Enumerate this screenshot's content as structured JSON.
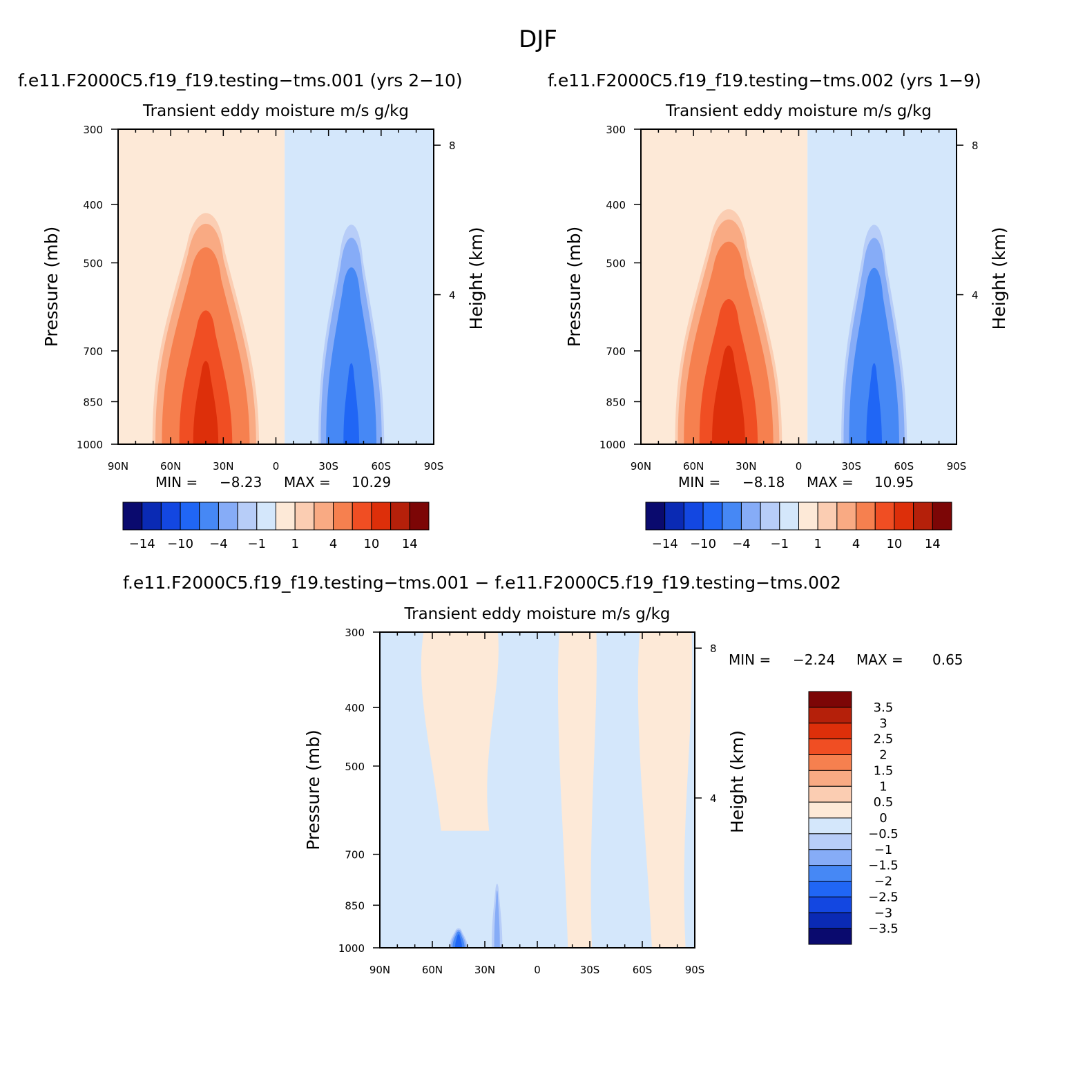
{
  "page": {
    "title": "DJF"
  },
  "palettes": {
    "main": [
      "#0a0a6e",
      "#0a2ab4",
      "#1347e1",
      "#2066f5",
      "#4688f5",
      "#86acf7",
      "#b7cdf8",
      "#d4e7fb",
      "#fde9d7",
      "#fbcdb2",
      "#f9aa83",
      "#f6804f",
      "#f04e23",
      "#dd2f0a",
      "#b5200a",
      "#7c0606"
    ],
    "diff": [
      "#0a0a6e",
      "#0a2ab4",
      "#1347e1",
      "#2066f5",
      "#4688f5",
      "#86acf7",
      "#b7cdf8",
      "#d4e7fb",
      "#fde9d7",
      "#fbcdb2",
      "#f9aa83",
      "#f6804f",
      "#f04e23",
      "#dd2f0a",
      "#b5200a",
      "#7c0606"
    ]
  },
  "chart_data": [
    {
      "type": "heatmap",
      "title": "f.e11.F2000C5.f19_f19.testing−tms.001 (yrs 2−10)",
      "subtitle": "Transient eddy moisture m/s g/kg",
      "xlabel": "",
      "ylabel": "Pressure (mb)",
      "ylabel_right": "Height (km)",
      "x_ticks": [
        "90N",
        "60N",
        "30N",
        "0",
        "30S",
        "60S",
        "90S"
      ],
      "y_ticks": [
        "300",
        "400",
        "500",
        "700",
        "850",
        "1000"
      ],
      "y_right_ticks": [
        "8",
        "4"
      ],
      "x_range": [
        90,
        -90
      ],
      "y_range": [
        1000,
        300
      ],
      "y_scale": "log",
      "stats": {
        "min_label": "MIN =",
        "min": "−8.23",
        "max_label": "MAX =",
        "max": "10.29"
      },
      "colorbar": {
        "orientation": "horizontal",
        "labels": [
          "−14",
          "−10",
          "−4",
          "−1",
          "1",
          "4",
          "10",
          "14"
        ]
      },
      "contour_levels": [
        -14,
        -12,
        -10,
        -8,
        -4,
        -2,
        -1,
        0,
        1,
        2,
        4,
        8,
        10,
        12,
        14
      ],
      "features": [
        {
          "kind": "region",
          "lat_range": [
            90,
            -5
          ],
          "p_range": [
            300,
            1000
          ],
          "value": 0.5
        },
        {
          "kind": "region",
          "lat_range": [
            -5,
            -90
          ],
          "p_range": [
            300,
            1000
          ],
          "value": -0.5
        },
        {
          "kind": "blob",
          "lat": 40,
          "p": 860,
          "lat_halfwidth": 32,
          "p_top": 380,
          "peak": 10.29
        },
        {
          "kind": "blob",
          "lat": -43,
          "p": 860,
          "lat_halfwidth": 20,
          "p_top": 395,
          "peak": -8.23
        }
      ]
    },
    {
      "type": "heatmap",
      "title": "f.e11.F2000C5.f19_f19.testing−tms.002 (yrs 1−9)",
      "subtitle": "Transient eddy moisture m/s g/kg",
      "xlabel": "",
      "ylabel": "Pressure (mb)",
      "ylabel_right": "Height (km)",
      "x_ticks": [
        "90N",
        "60N",
        "30N",
        "0",
        "30S",
        "60S",
        "90S"
      ],
      "y_ticks": [
        "300",
        "400",
        "500",
        "700",
        "850",
        "1000"
      ],
      "y_right_ticks": [
        "8",
        "4"
      ],
      "x_range": [
        90,
        -90
      ],
      "y_range": [
        1000,
        300
      ],
      "y_scale": "log",
      "stats": {
        "min_label": "MIN =",
        "min": "−8.18",
        "max_label": "MAX =",
        "max": "10.95"
      },
      "colorbar": {
        "orientation": "horizontal",
        "labels": [
          "−14",
          "−10",
          "−4",
          "−1",
          "1",
          "4",
          "10",
          "14"
        ]
      },
      "contour_levels": [
        -14,
        -12,
        -10,
        -8,
        -4,
        -2,
        -1,
        0,
        1,
        2,
        4,
        8,
        10,
        12,
        14
      ],
      "features": [
        {
          "kind": "region",
          "lat_range": [
            90,
            -5
          ],
          "p_range": [
            300,
            1000
          ],
          "value": 0.5
        },
        {
          "kind": "region",
          "lat_range": [
            -5,
            -90
          ],
          "p_range": [
            300,
            1000
          ],
          "value": -0.5
        },
        {
          "kind": "blob",
          "lat": 40,
          "p": 860,
          "lat_halfwidth": 32,
          "p_top": 375,
          "peak": 10.95
        },
        {
          "kind": "blob",
          "lat": -43,
          "p": 860,
          "lat_halfwidth": 20,
          "p_top": 395,
          "peak": -8.18
        }
      ]
    },
    {
      "type": "heatmap",
      "title": "f.e11.F2000C5.f19_f19.testing−tms.001 − f.e11.F2000C5.f19_f19.testing−tms.002",
      "subtitle": "Transient eddy moisture m/s g/kg",
      "xlabel": "",
      "ylabel": "Pressure (mb)",
      "ylabel_right": "Height (km)",
      "x_ticks": [
        "90N",
        "60N",
        "30N",
        "0",
        "30S",
        "60S",
        "90S"
      ],
      "y_ticks": [
        "300",
        "400",
        "500",
        "700",
        "850",
        "1000"
      ],
      "y_right_ticks": [
        "8",
        "4"
      ],
      "x_range": [
        90,
        -90
      ],
      "y_range": [
        1000,
        300
      ],
      "y_scale": "log",
      "stats": {
        "min_label": "MIN =",
        "min": "−2.24",
        "max_label": "MAX =",
        "max": "0.65"
      },
      "colorbar": {
        "orientation": "vertical",
        "labels": [
          "3.5",
          "3",
          "2.5",
          "2",
          "1.5",
          "1",
          "0.5",
          "0",
          "−0.5",
          "−1",
          "−1.5",
          "−2",
          "−2.5",
          "−3",
          "−3.5"
        ]
      },
      "contour_levels": [
        -3.5,
        -3,
        -2.5,
        -2,
        -1.5,
        -1,
        -0.5,
        0,
        0.5,
        1,
        1.5,
        2,
        2.5,
        3,
        3.5
      ],
      "features": [
        {
          "kind": "region",
          "lat_range": [
            90,
            -90
          ],
          "p_range": [
            300,
            1000
          ],
          "value": -0.25
        },
        {
          "kind": "strip",
          "lat_range": [
            70,
            20
          ],
          "p_range": [
            300,
            640
          ],
          "value": 0.25
        },
        {
          "kind": "strip",
          "lat_range": [
            -10,
            -35
          ],
          "p_range": [
            300,
            1000
          ],
          "value": 0.25
        },
        {
          "kind": "strip",
          "lat_range": [
            -55,
            -90
          ],
          "p_range": [
            300,
            1000
          ],
          "value": 0.25
        },
        {
          "kind": "blob",
          "lat": 23,
          "p": 820,
          "lat_halfwidth": 4,
          "p_top": 760,
          "peak": -1.2
        },
        {
          "kind": "blob",
          "lat": 45,
          "p": 960,
          "lat_halfwidth": 6,
          "p_top": 920,
          "peak": -2.24
        }
      ]
    }
  ]
}
